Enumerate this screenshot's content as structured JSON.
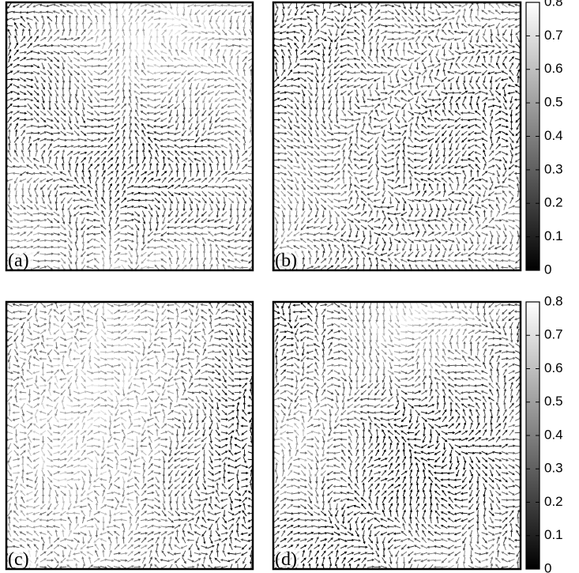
{
  "chart_data": [
    {
      "type": "quiver",
      "label": "(a)"
    },
    {
      "type": "quiver",
      "label": "(b)",
      "colorbar": {
        "ylim": [
          0,
          0.8
        ],
        "yticks": [
          0,
          0.1,
          0.2,
          0.3,
          0.4,
          0.5,
          0.6,
          0.7,
          0.8
        ],
        "colormap": [
          "#000000",
          "#ffffff"
        ]
      }
    },
    {
      "type": "quiver",
      "label": "(c)"
    },
    {
      "type": "quiver",
      "label": "(d)",
      "colorbar": {
        "ylim": [
          0,
          0.8
        ],
        "yticks": [
          0,
          0.1,
          0.2,
          0.3,
          0.4,
          0.5,
          0.6,
          0.7,
          0.8
        ],
        "colormap": [
          "#000000",
          "#ffffff"
        ]
      }
    }
  ]
}
